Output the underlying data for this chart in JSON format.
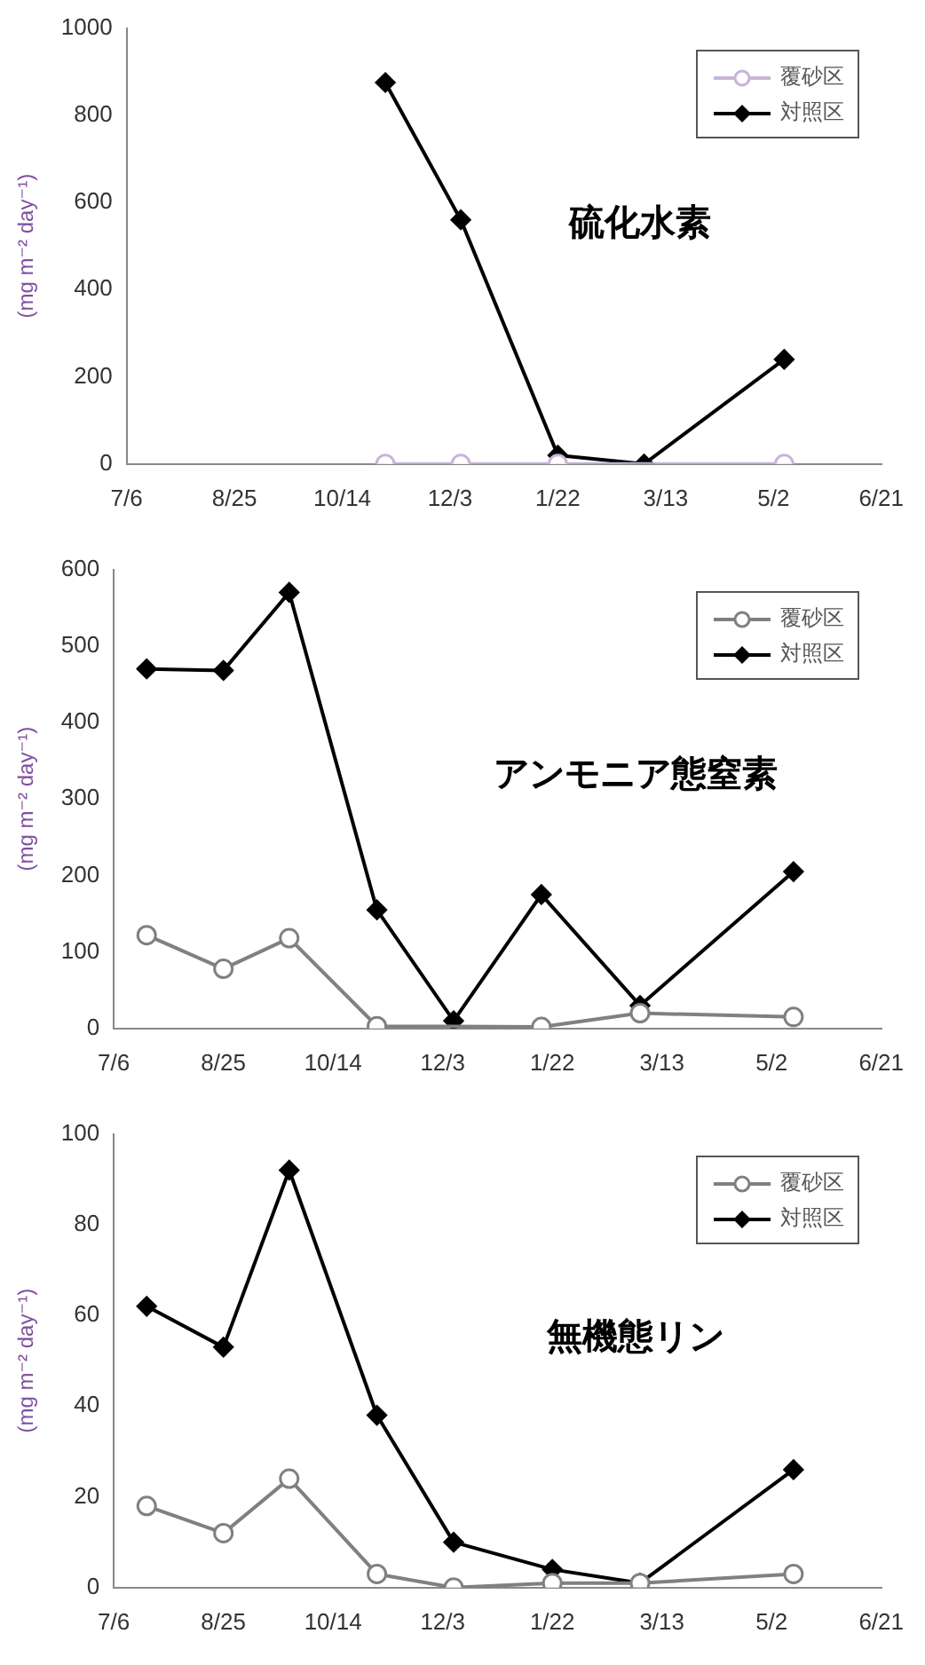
{
  "chart_data": [
    {
      "type": "line",
      "title": "硫化水素",
      "ylabel": "(mg m⁻² day⁻¹)",
      "ylim": [
        0,
        1000
      ],
      "yticks": [
        0,
        200,
        400,
        600,
        800,
        1000
      ],
      "categories": [
        "7/6",
        null,
        null,
        null,
        null,
        null,
        null,
        null,
        null,
        null,
        "8/25",
        null,
        null,
        null,
        null,
        null,
        null,
        null,
        null,
        null,
        "10/14",
        null,
        null,
        null,
        null,
        null,
        null,
        null,
        null,
        null,
        "12/3",
        null,
        null,
        null,
        null,
        null,
        null,
        null,
        null,
        null,
        "1/22",
        null,
        null,
        null,
        null,
        null,
        null,
        null,
        null,
        null,
        "3/13",
        null,
        null,
        null,
        null,
        null,
        null,
        null,
        null,
        null,
        "5/2",
        null,
        null,
        null,
        null,
        null,
        null,
        null,
        null,
        null,
        "6/21"
      ],
      "legend": "top right",
      "grid": false,
      "series": [
        {
          "name": "覆砂区",
          "color": "#c8b4d8",
          "marker": "circle",
          "values": [
            null,
            null,
            null,
            null,
            null,
            null,
            null,
            null,
            null,
            null,
            null,
            null,
            null,
            null,
            null,
            null,
            null,
            null,
            null,
            null,
            null,
            null,
            null,
            null,
            0,
            null,
            null,
            null,
            null,
            null,
            null,
            0,
            null,
            null,
            null,
            null,
            null,
            null,
            null,
            null,
            0,
            null,
            null,
            null,
            null,
            null,
            null,
            null,
            null,
            null,
            null,
            null,
            null,
            null,
            null,
            null,
            null,
            null,
            null,
            null,
            null,
            0,
            null,
            null,
            null,
            null,
            null,
            null,
            null,
            null,
            null
          ]
        },
        {
          "name": "対照区",
          "color": "#000000",
          "marker": "diamond",
          "values": [
            null,
            null,
            null,
            null,
            null,
            null,
            null,
            null,
            null,
            null,
            null,
            null,
            null,
            null,
            null,
            null,
            null,
            null,
            null,
            null,
            null,
            null,
            null,
            null,
            875,
            null,
            null,
            null,
            null,
            null,
            null,
            560,
            null,
            null,
            null,
            null,
            null,
            null,
            null,
            null,
            20,
            null,
            null,
            null,
            null,
            null,
            null,
            null,
            0,
            null,
            null,
            null,
            null,
            null,
            null,
            null,
            null,
            null,
            null,
            null,
            null,
            240,
            null,
            null,
            null,
            null,
            null,
            null,
            null,
            null,
            null
          ]
        }
      ]
    },
    {
      "type": "line",
      "title": "アンモニア態窒素",
      "ylabel": "(mg m⁻² day⁻¹)",
      "ylim": [
        0,
        600
      ],
      "yticks": [
        0,
        100,
        200,
        300,
        400,
        500,
        600
      ],
      "categories": [
        "7/6",
        null,
        null,
        null,
        null,
        null,
        null,
        null,
        null,
        null,
        "8/25",
        null,
        null,
        null,
        null,
        null,
        null,
        null,
        null,
        null,
        "10/14",
        null,
        null,
        null,
        null,
        null,
        null,
        null,
        null,
        null,
        "12/3",
        null,
        null,
        null,
        null,
        null,
        null,
        null,
        null,
        null,
        "1/22",
        null,
        null,
        null,
        null,
        null,
        null,
        null,
        null,
        null,
        "3/13",
        null,
        null,
        null,
        null,
        null,
        null,
        null,
        null,
        null,
        "5/2",
        null,
        null,
        null,
        null,
        null,
        null,
        null,
        null,
        null,
        "6/21"
      ],
      "legend": "top right",
      "grid": false,
      "series": [
        {
          "name": "覆砂区",
          "color": "#808080",
          "marker": "circle",
          "values": [
            null,
            null,
            null,
            122,
            null,
            null,
            null,
            null,
            null,
            null,
            78,
            null,
            null,
            null,
            null,
            null,
            118,
            null,
            null,
            null,
            null,
            null,
            null,
            null,
            3,
            null,
            null,
            null,
            null,
            null,
            null,
            null,
            null,
            null,
            null,
            null,
            null,
            null,
            null,
            2,
            null,
            null,
            null,
            null,
            null,
            null,
            null,
            null,
            20,
            null,
            null,
            null,
            null,
            null,
            null,
            null,
            null,
            null,
            null,
            null,
            null,
            null,
            15,
            null,
            null,
            null,
            null,
            null,
            null,
            null,
            null
          ]
        },
        {
          "name": "対照区",
          "color": "#000000",
          "marker": "diamond",
          "values": [
            null,
            null,
            null,
            470,
            null,
            null,
            null,
            null,
            null,
            null,
            468,
            null,
            null,
            null,
            null,
            null,
            570,
            null,
            null,
            null,
            null,
            null,
            null,
            null,
            155,
            null,
            null,
            null,
            null,
            null,
            null,
            10,
            null,
            null,
            null,
            null,
            null,
            null,
            null,
            175,
            null,
            null,
            null,
            null,
            null,
            null,
            null,
            null,
            30,
            null,
            null,
            null,
            null,
            null,
            null,
            null,
            null,
            null,
            null,
            null,
            null,
            null,
            205,
            null,
            null,
            null,
            null,
            null,
            null,
            null,
            null
          ]
        }
      ]
    },
    {
      "type": "line",
      "title": "無機態リン",
      "ylabel": "(mg m⁻² day⁻¹)",
      "ylim": [
        0,
        100
      ],
      "yticks": [
        0,
        20,
        40,
        60,
        80,
        100
      ],
      "categories": [
        "7/6",
        null,
        null,
        null,
        null,
        null,
        null,
        null,
        null,
        null,
        "8/25",
        null,
        null,
        null,
        null,
        null,
        null,
        null,
        null,
        null,
        "10/14",
        null,
        null,
        null,
        null,
        null,
        null,
        null,
        null,
        null,
        "12/3",
        null,
        null,
        null,
        null,
        null,
        null,
        null,
        null,
        null,
        "1/22",
        null,
        null,
        null,
        null,
        null,
        null,
        null,
        null,
        null,
        "3/13",
        null,
        null,
        null,
        null,
        null,
        null,
        null,
        null,
        null,
        "5/2",
        null,
        null,
        null,
        null,
        null,
        null,
        null,
        null,
        null,
        "6/21"
      ],
      "legend": "top right",
      "grid": false,
      "series": [
        {
          "name": "覆砂区",
          "color": "#808080",
          "marker": "circle",
          "values": [
            null,
            null,
            null,
            18,
            null,
            null,
            null,
            null,
            null,
            null,
            12,
            null,
            null,
            null,
            null,
            null,
            24,
            null,
            null,
            null,
            null,
            null,
            null,
            null,
            3,
            null,
            null,
            null,
            null,
            null,
            null,
            0,
            null,
            null,
            null,
            null,
            null,
            null,
            null,
            null,
            1,
            null,
            null,
            null,
            null,
            null,
            null,
            null,
            1,
            null,
            null,
            null,
            null,
            null,
            null,
            null,
            null,
            null,
            null,
            null,
            null,
            null,
            3,
            null,
            null,
            null,
            null,
            null,
            null,
            null,
            null
          ]
        },
        {
          "name": "対照区",
          "color": "#000000",
          "marker": "diamond",
          "values": [
            null,
            null,
            null,
            62,
            null,
            null,
            null,
            null,
            null,
            null,
            53,
            null,
            null,
            null,
            null,
            null,
            92,
            null,
            null,
            null,
            null,
            null,
            null,
            null,
            38,
            null,
            null,
            null,
            null,
            null,
            null,
            10,
            null,
            null,
            null,
            null,
            null,
            null,
            null,
            null,
            4,
            null,
            null,
            null,
            null,
            null,
            null,
            null,
            1,
            null,
            null,
            null,
            null,
            null,
            null,
            null,
            null,
            null,
            null,
            null,
            null,
            null,
            26,
            null,
            null,
            null,
            null,
            null,
            null,
            null,
            null
          ]
        }
      ]
    }
  ]
}
